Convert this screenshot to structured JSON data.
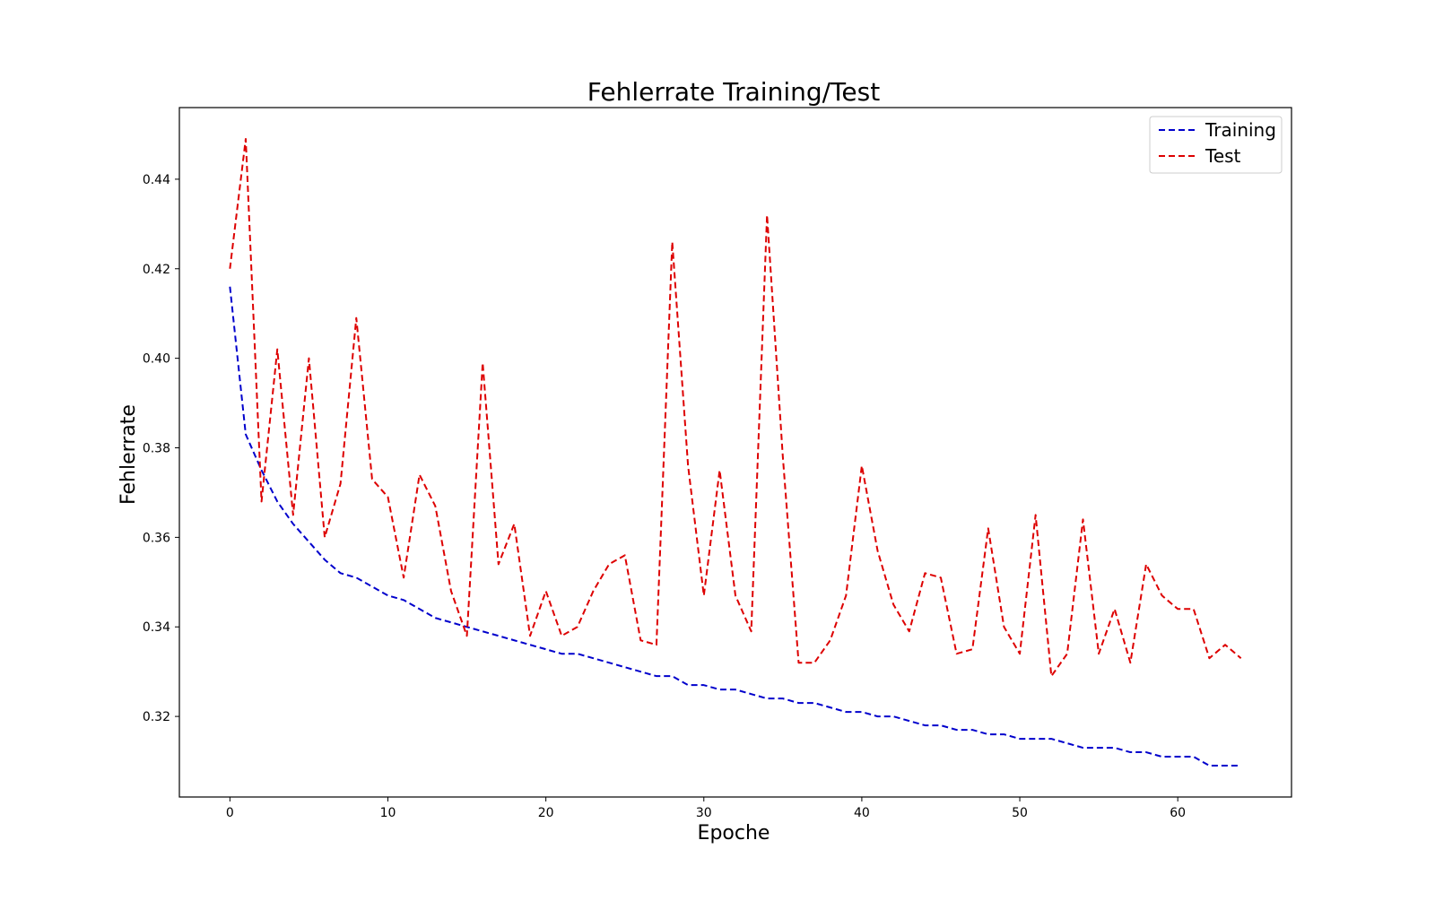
{
  "chart_data": {
    "type": "line",
    "title": "Fehlerrate Training/Test",
    "xlabel": "Epoche",
    "ylabel": "Fehlerrate",
    "xlim": [
      -3.2,
      67.2
    ],
    "ylim": [
      0.302,
      0.456
    ],
    "x_ticks": [
      0,
      10,
      20,
      30,
      40,
      50,
      60
    ],
    "y_ticks": [
      0.32,
      0.34,
      0.36,
      0.38,
      0.4,
      0.42,
      0.44
    ],
    "y_tick_labels": [
      "0.32",
      "0.34",
      "0.36",
      "0.38",
      "0.40",
      "0.42",
      "0.44"
    ],
    "grid": false,
    "legend": {
      "position": "top-right"
    },
    "x": [
      0,
      1,
      2,
      3,
      4,
      5,
      6,
      7,
      8,
      9,
      10,
      11,
      12,
      13,
      14,
      15,
      16,
      17,
      18,
      19,
      20,
      21,
      22,
      23,
      24,
      25,
      26,
      27,
      28,
      29,
      30,
      31,
      32,
      33,
      34,
      35,
      36,
      37,
      38,
      39,
      40,
      41,
      42,
      43,
      44,
      45,
      46,
      47,
      48,
      49,
      50,
      51,
      52,
      53,
      54,
      55,
      56,
      57,
      58,
      59,
      60,
      61,
      62,
      63,
      64
    ],
    "series": [
      {
        "name": "Training",
        "color": "#0000cc",
        "line_style": "dashed",
        "values": [
          0.416,
          0.383,
          0.375,
          0.368,
          0.363,
          0.359,
          0.355,
          0.352,
          0.351,
          0.349,
          0.347,
          0.346,
          0.344,
          0.342,
          0.341,
          0.34,
          0.339,
          0.338,
          0.337,
          0.336,
          0.335,
          0.334,
          0.334,
          0.333,
          0.332,
          0.331,
          0.33,
          0.329,
          0.329,
          0.327,
          0.327,
          0.326,
          0.326,
          0.325,
          0.324,
          0.324,
          0.323,
          0.323,
          0.322,
          0.321,
          0.321,
          0.32,
          0.32,
          0.319,
          0.318,
          0.318,
          0.317,
          0.317,
          0.316,
          0.316,
          0.315,
          0.315,
          0.315,
          0.314,
          0.313,
          0.313,
          0.313,
          0.312,
          0.312,
          0.311,
          0.311,
          0.311,
          0.309,
          0.309,
          0.309
        ]
      },
      {
        "name": "Test",
        "color": "#dd0000",
        "line_style": "dashed",
        "values": [
          0.42,
          0.449,
          0.368,
          0.402,
          0.365,
          0.4,
          0.36,
          0.372,
          0.409,
          0.373,
          0.369,
          0.351,
          0.374,
          0.367,
          0.348,
          0.338,
          0.399,
          0.354,
          0.363,
          0.338,
          0.348,
          0.338,
          0.34,
          0.348,
          0.354,
          0.356,
          0.337,
          0.336,
          0.426,
          0.376,
          0.347,
          0.375,
          0.347,
          0.339,
          0.432,
          0.378,
          0.332,
          0.332,
          0.337,
          0.347,
          0.376,
          0.357,
          0.345,
          0.339,
          0.352,
          0.351,
          0.334,
          0.335,
          0.362,
          0.34,
          0.334,
          0.365,
          0.329,
          0.334,
          0.364,
          0.334,
          0.344,
          0.332,
          0.354,
          0.347,
          0.344,
          0.344,
          0.333,
          0.336,
          0.333
        ]
      }
    ]
  }
}
